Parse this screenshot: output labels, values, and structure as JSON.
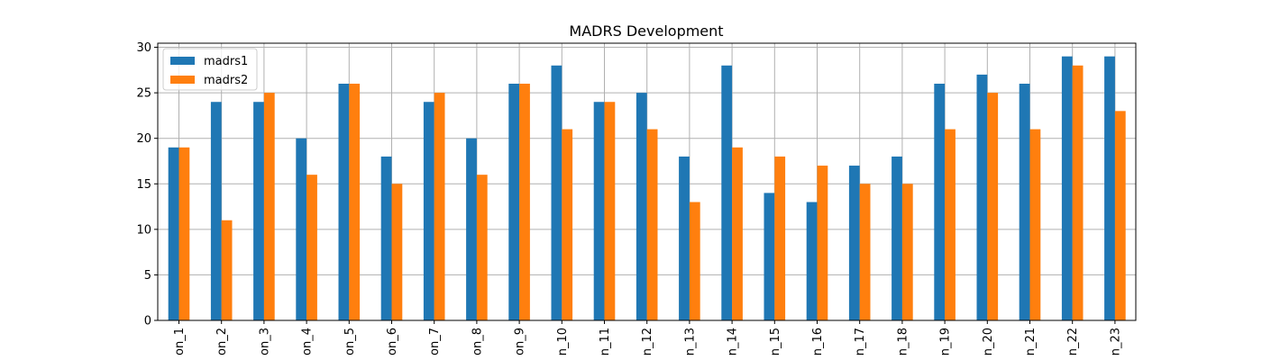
{
  "chart_data": {
    "type": "bar",
    "title": "MADRS Development",
    "xlabel": "",
    "ylabel": "",
    "categories": [
      "on_1",
      "on_2",
      "on_3",
      "on_4",
      "on_5",
      "on_6",
      "on_7",
      "on_8",
      "on_9",
      "n_10",
      "n_11",
      "n_12",
      "n_13",
      "n_14",
      "n_15",
      "n_16",
      "n_17",
      "n_18",
      "n_19",
      "n_20",
      "n_21",
      "n_22",
      "n_23"
    ],
    "series": [
      {
        "name": "madrs1",
        "color": "#1f77b4",
        "values": [
          19,
          24,
          24,
          20,
          26,
          18,
          24,
          20,
          26,
          28,
          24,
          25,
          18,
          28,
          14,
          13,
          17,
          18,
          26,
          27,
          26,
          29,
          29
        ]
      },
      {
        "name": "madrs2",
        "color": "#ff7f0e",
        "values": [
          19,
          11,
          25,
          16,
          26,
          15,
          25,
          16,
          26,
          21,
          24,
          21,
          13,
          19,
          18,
          17,
          15,
          15,
          21,
          25,
          21,
          28,
          23
        ]
      }
    ],
    "ylim": [
      0,
      30.45
    ],
    "yticks": [
      0,
      5,
      10,
      15,
      20,
      25,
      30
    ],
    "grid": true,
    "legend_position": "top-left"
  }
}
